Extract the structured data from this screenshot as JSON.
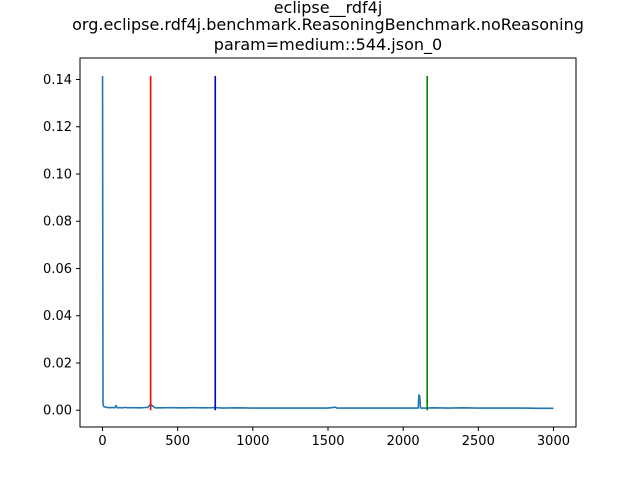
{
  "chart_data": {
    "type": "line",
    "title_lines": [
      "eclipse__rdf4j",
      "org.eclipse.rdf4j.benchmark.ReasoningBenchmark.noReasoning",
      "param=medium::544.json_0"
    ],
    "xlabel": "",
    "ylabel": "",
    "xlim": [
      -150,
      3150
    ],
    "ylim": [
      -0.0071,
      0.1491
    ],
    "x_ticks": [
      0,
      500,
      1000,
      1500,
      2000,
      2500,
      3000
    ],
    "y_ticks": [
      0.0,
      0.02,
      0.04,
      0.06,
      0.08,
      0.1,
      0.12,
      0.14
    ],
    "y_tick_labels": [
      "0.00",
      "0.02",
      "0.04",
      "0.06",
      "0.08",
      "0.10",
      "0.12",
      "0.14"
    ],
    "grid": false,
    "legend": "none",
    "series": [
      {
        "color": "#1f77b4",
        "x": [
          0,
          3,
          6,
          10,
          15,
          20,
          30,
          40,
          50,
          60,
          70,
          80,
          90,
          95,
          100,
          110,
          130,
          150,
          170,
          200,
          230,
          260,
          290,
          300,
          320,
          350,
          400,
          450,
          500,
          550,
          600,
          650,
          700,
          750,
          800,
          900,
          1000,
          1100,
          1200,
          1300,
          1400,
          1500,
          1550,
          1560,
          1600,
          1700,
          1800,
          1900,
          2000,
          2050,
          2100,
          2105,
          2110,
          2115,
          2120,
          2150,
          2200,
          2300,
          2400,
          2500,
          2600,
          2700,
          2800,
          2900,
          3000
        ],
        "y": [
          0.1415,
          0.003,
          0.0018,
          0.0015,
          0.0014,
          0.0013,
          0.0011,
          0.0012,
          0.001,
          0.0012,
          0.0011,
          0.001,
          0.002,
          0.0012,
          0.001,
          0.0011,
          0.001,
          0.0012,
          0.001,
          0.0011,
          0.001,
          0.001,
          0.0012,
          0.0011,
          0.0025,
          0.001,
          0.001,
          0.0011,
          0.001,
          0.001,
          0.0011,
          0.001,
          0.001,
          0.0011,
          0.0009,
          0.001,
          0.0009,
          0.0009,
          0.0009,
          0.0009,
          0.0009,
          0.0009,
          0.0013,
          0.0009,
          0.0009,
          0.0009,
          0.0009,
          0.0009,
          0.0009,
          0.0009,
          0.0009,
          0.0065,
          0.006,
          0.001,
          0.0009,
          0.0009,
          0.001,
          0.0009,
          0.001,
          0.0009,
          0.0009,
          0.0009,
          0.0009,
          0.0008,
          0.0008
        ]
      }
    ],
    "vertical_lines": [
      {
        "x": 320,
        "color": "#ff0000"
      },
      {
        "x": 750,
        "color": "#0000cc"
      },
      {
        "x": 2160,
        "color": "#008000"
      }
    ],
    "vertical_line_ymax": 0.1415
  }
}
